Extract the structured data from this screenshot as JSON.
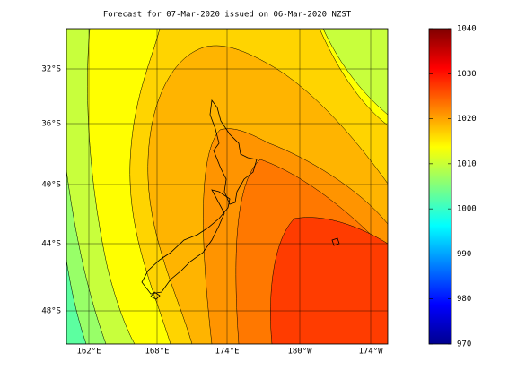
{
  "title": "Forecast for 07-Mar-2020 issued on 06-Mar-2020 NZST",
  "lat_labels": [
    "32°S",
    "36°S",
    "40°S",
    "44°S",
    "48°S"
  ],
  "lon_labels": [
    "162°E",
    "168°E",
    "174°E",
    "180°W",
    "174°W"
  ],
  "colorbar": {
    "lim": [
      970,
      1040
    ],
    "ticks": [
      970,
      980,
      990,
      1000,
      1010,
      1020,
      1030,
      1040
    ],
    "colormap": "jet"
  }
}
